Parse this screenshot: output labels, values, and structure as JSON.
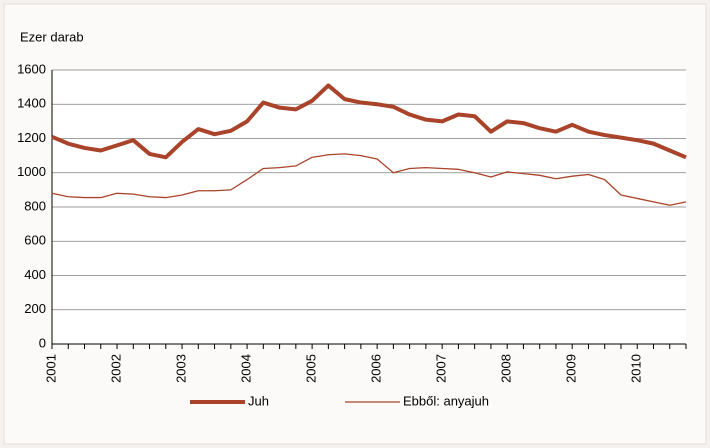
{
  "chart_data": {
    "type": "line",
    "y_axis_label": "Ezer darab",
    "categories": [
      "2001",
      null,
      null,
      null,
      "2002",
      null,
      null,
      null,
      "2003",
      null,
      null,
      null,
      "2004",
      null,
      null,
      null,
      "2005",
      null,
      null,
      null,
      "2006",
      null,
      null,
      null,
      "2007",
      null,
      null,
      null,
      "2008",
      null,
      null,
      null,
      "2009",
      null,
      null,
      null,
      "2010",
      null,
      null,
      null
    ],
    "series": [
      {
        "name": "Juh",
        "color": "#a9432a",
        "width": 4,
        "values": [
          1210,
          1170,
          1145,
          1130,
          1160,
          1190,
          1110,
          1090,
          1180,
          1255,
          1225,
          1245,
          1300,
          1410,
          1380,
          1370,
          1420,
          1510,
          1430,
          1410,
          1400,
          1385,
          1340,
          1310,
          1300,
          1340,
          1330,
          1240,
          1300,
          1290,
          1260,
          1240,
          1280,
          1240,
          1220,
          1205,
          1190,
          1170,
          1130,
          1090
        ]
      },
      {
        "name": "Ebből: anyajuh",
        "color": "#a9432a",
        "width": 1.3,
        "values": [
          880,
          860,
          855,
          855,
          880,
          875,
          860,
          855,
          870,
          895,
          895,
          900,
          960,
          1025,
          1030,
          1040,
          1090,
          1105,
          1110,
          1100,
          1080,
          1000,
          1025,
          1030,
          1025,
          1020,
          1000,
          975,
          1005,
          995,
          985,
          965,
          980,
          990,
          960,
          870,
          850,
          830,
          810,
          830
        ]
      }
    ],
    "ylim": [
      0,
      1600
    ],
    "yticks": [
      0,
      200,
      400,
      600,
      800,
      1000,
      1200,
      1400,
      1600
    ],
    "grid": true
  }
}
